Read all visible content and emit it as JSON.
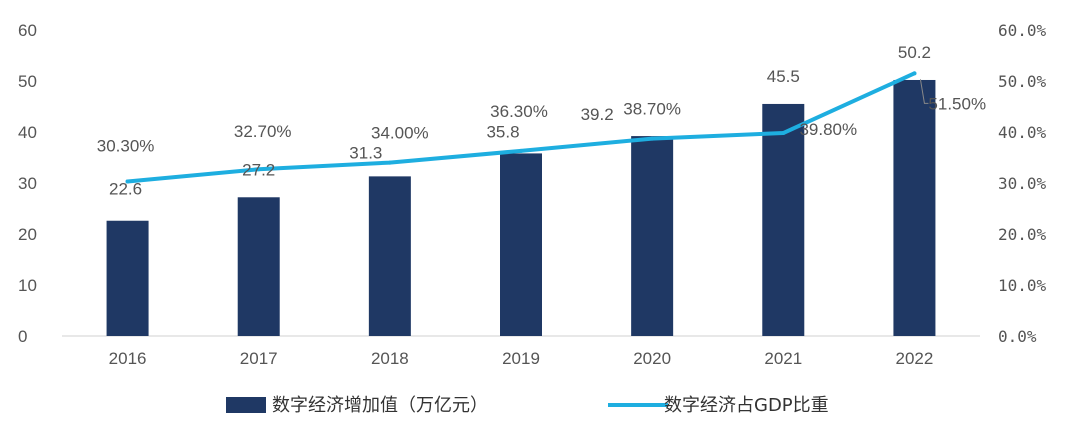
{
  "chart_data": {
    "type": "bar",
    "categories": [
      "2016",
      "2017",
      "2018",
      "2019",
      "2020",
      "2021",
      "2022"
    ],
    "series": [
      {
        "name": "数字经济增加值（万亿元）",
        "type": "bar",
        "axis": "left",
        "color": "#1f3864",
        "values": [
          22.6,
          27.2,
          31.3,
          35.8,
          39.2,
          45.5,
          50.2
        ],
        "labels": [
          "22.6",
          "27.2",
          "31.3",
          "35.8",
          "39.2",
          "45.5",
          "50.2"
        ]
      },
      {
        "name": "数字经济占GDP比重",
        "type": "line",
        "axis": "right",
        "color": "#1eaee0",
        "values": [
          30.3,
          32.7,
          34.0,
          36.3,
          38.7,
          39.8,
          51.5
        ],
        "labels": [
          "30.30%",
          "32.70%",
          "34.00%",
          "36.30%",
          "38.70%",
          "39.80%",
          "51.50%"
        ]
      }
    ],
    "y_left": {
      "ylim": [
        0,
        60
      ],
      "ticks": [
        "0",
        "10",
        "20",
        "30",
        "40",
        "50",
        "60"
      ]
    },
    "y_right": {
      "ylim": [
        0,
        60
      ],
      "ticks": [
        "0.0%",
        "10.0%",
        "20.0%",
        "30.0%",
        "40.0%",
        "50.0%",
        "60.0%"
      ]
    },
    "legend_position": "bottom",
    "grid": false
  }
}
